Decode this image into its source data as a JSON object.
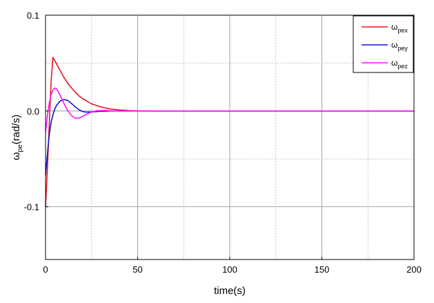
{
  "chart_data": {
    "type": "line",
    "xlabel": "time(s)",
    "ylabel_symbol": "ω",
    "ylabel_sub": "pe",
    "ylabel_unit": "(rad/s)",
    "xlim": [
      0,
      200
    ],
    "ylim": [
      -0.155,
      0.1
    ],
    "x_ticks": [
      0,
      50,
      100,
      150,
      200
    ],
    "x_tick_labels": [
      "0",
      "50",
      "100",
      "150",
      "200"
    ],
    "y_ticks": [
      -0.1,
      0.0,
      0.1
    ],
    "y_tick_labels": [
      "-0.1",
      "0.0",
      "0.1"
    ],
    "x_minor_grid": [
      25,
      75,
      125,
      175
    ],
    "y_minor_grid": [
      -0.05,
      0.05
    ],
    "grid": true,
    "legend_position": "top-right",
    "series": [
      {
        "name_symbol": "ω",
        "name_sub": "pex",
        "color": "#e8141b",
        "x": [
          0,
          1,
          2,
          3,
          4,
          6,
          8,
          10,
          12,
          15,
          18,
          20,
          25,
          30,
          35,
          40,
          45,
          50,
          60,
          80,
          100,
          150,
          200
        ],
        "y": [
          -0.1,
          -0.06,
          -0.015,
          0.03,
          0.056,
          0.049,
          0.042,
          0.035,
          0.029,
          0.022,
          0.016,
          0.013,
          0.0075,
          0.0042,
          0.0022,
          0.0011,
          0.0005,
          0.0002,
          0.0,
          0.0,
          0.0,
          0.0,
          0.0
        ]
      },
      {
        "name_symbol": "ω",
        "name_sub": "pey",
        "color": "#1010d8",
        "x": [
          0,
          1,
          2,
          3,
          4,
          5,
          6,
          8,
          10,
          12,
          14,
          16,
          18,
          20,
          22,
          25,
          30,
          35,
          40,
          50,
          100,
          150,
          200
        ],
        "y": [
          -0.067,
          -0.045,
          -0.025,
          -0.012,
          -0.004,
          0.002,
          0.006,
          0.0105,
          0.012,
          0.011,
          0.008,
          0.0045,
          0.0015,
          -0.0005,
          -0.0012,
          -0.001,
          -0.0003,
          0.0,
          0.0,
          0.0,
          0.0,
          0.0,
          0.0
        ]
      },
      {
        "name_symbol": "ω",
        "name_sub": "pez",
        "color": "#ff10ff",
        "x": [
          0,
          1,
          2,
          3,
          4,
          5,
          6,
          7,
          8,
          10,
          12,
          14,
          16,
          18,
          20,
          22,
          25,
          28,
          32,
          36,
          40,
          50,
          100,
          150,
          200
        ],
        "y": [
          -0.022,
          -0.005,
          0.008,
          0.017,
          0.022,
          0.024,
          0.023,
          0.02,
          0.016,
          0.008,
          0.0005,
          -0.0045,
          -0.0075,
          -0.0075,
          -0.0058,
          -0.0035,
          -0.001,
          0.0003,
          0.0006,
          0.0002,
          0.0,
          0.0,
          0.0,
          0.0,
          0.0
        ]
      }
    ]
  }
}
